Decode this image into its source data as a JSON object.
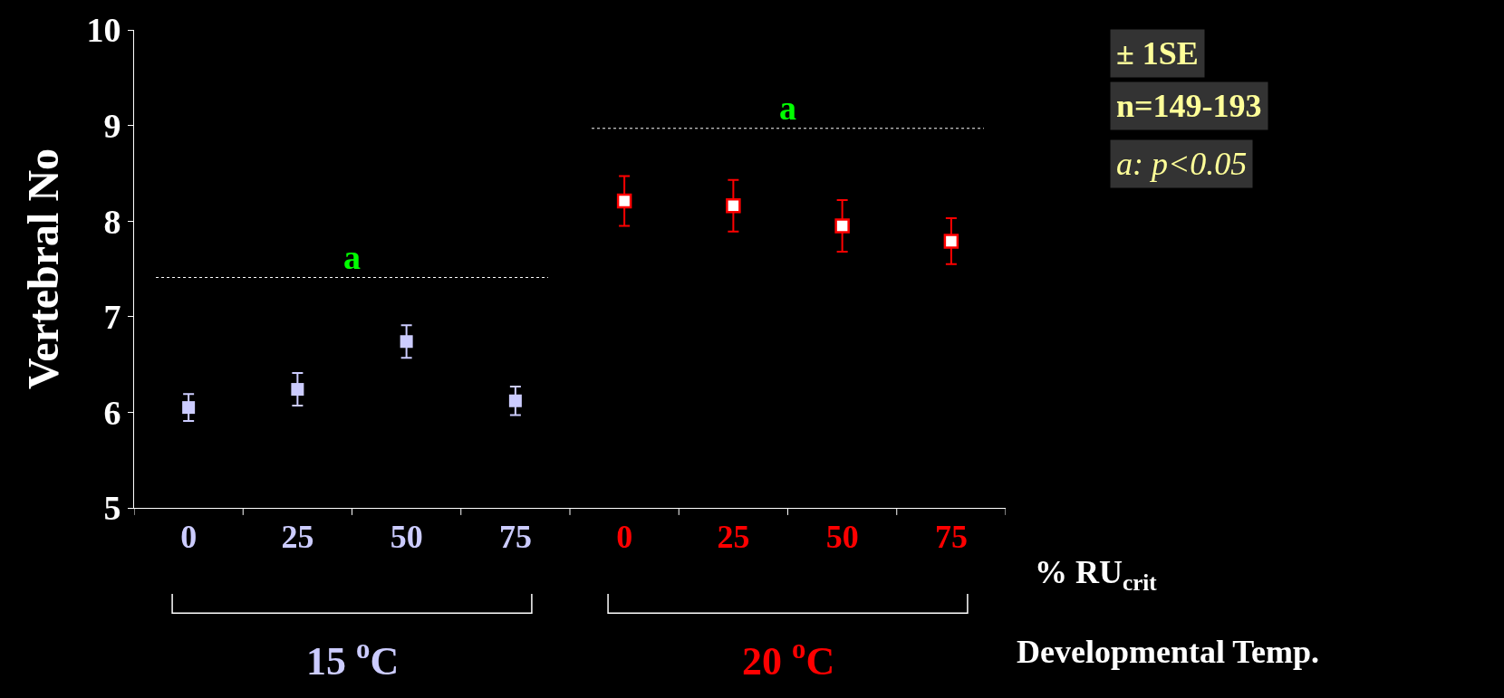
{
  "chart_data": {
    "type": "scatter",
    "ylabel": "Vertebral No",
    "xlabel": "% RU$_{crit}$",
    "categories": [
      "0",
      "25",
      "50",
      "75",
      "0",
      "25",
      "50",
      "75"
    ],
    "ylim": [
      5,
      10
    ],
    "yticks": [
      5,
      6,
      7,
      8,
      9,
      10
    ],
    "grid": false,
    "legend": false,
    "marker": "square",
    "series": [
      {
        "name": "15 $^{o}$C",
        "color": "#ccccff",
        "values": [
          6.05,
          6.24,
          6.74,
          6.12,
          null,
          null,
          null,
          null
        ],
        "errors": [
          0.14,
          0.17,
          0.17,
          0.15,
          null,
          null,
          null,
          null
        ]
      },
      {
        "name": "20 $^{o}$C",
        "color": "#ff0000",
        "values": [
          null,
          null,
          null,
          null,
          8.21,
          8.16,
          7.95,
          7.79
        ],
        "errors": [
          null,
          null,
          null,
          null,
          0.26,
          0.27,
          0.27,
          0.24
        ]
      }
    ],
    "annotations": [
      "a",
      "a",
      "Developmental Temp.",
      "± 1SE",
      "n=149-193",
      "a: p<0.05"
    ]
  }
}
